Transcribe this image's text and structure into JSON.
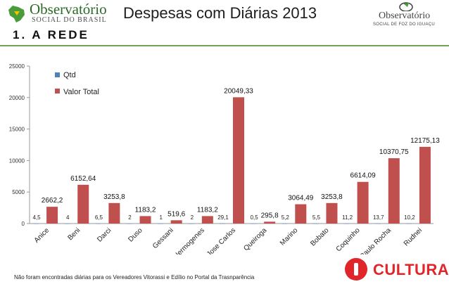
{
  "header": {
    "left_logo": {
      "brand": "Observatório",
      "sub": "SOCIAL DO BRASIL"
    },
    "title": "Despesas com Diárias 2013",
    "right_logo": {
      "brand": "Observatório",
      "sub": "SOCIAL DE FOZ DO IGUAÇU"
    },
    "section": "1. A REDE"
  },
  "colors": {
    "qtd": "#4f81bd",
    "valor_total": "#c0504d",
    "accent_line": "#6fa25a",
    "cultura": "#e0262a"
  },
  "chart_data": {
    "type": "bar",
    "categories": [
      "Anice",
      "Beni",
      "Darci",
      "Duso",
      "Gessani",
      "Hermogenes",
      "Jose Carlos",
      "Queiroga",
      "Marino",
      "Bobato",
      "Coquinho",
      "Paulo Rocha",
      "Rudnei"
    ],
    "series": [
      {
        "name": "Qtd",
        "values": [
          4.5,
          4,
          6.5,
          2,
          1,
          2,
          29.1,
          0.5,
          5.2,
          5.5,
          11.2,
          13.7,
          10.2
        ],
        "labels": [
          "4,5",
          "4",
          "6,5",
          "2",
          "1",
          "2",
          "29,1",
          "0,5",
          "5,2",
          "5,5",
          "11,2",
          "13,7",
          "10,2"
        ]
      },
      {
        "name": "Valor Total",
        "values": [
          2662.2,
          6152.64,
          3253.8,
          1183.2,
          519.6,
          1183.2,
          20049.33,
          295.8,
          3064.49,
          3253.8,
          6614.09,
          10370.75,
          12175.13
        ],
        "labels": [
          "2662,2",
          "6152,64",
          "3253,8",
          "1183,2",
          "519,6",
          "1183,2",
          "20049,33",
          "295,8",
          "3064,49",
          "3253,8",
          "6614,09",
          "10370,75",
          "12175,13"
        ]
      }
    ],
    "yticks": [
      "0",
      "5000",
      "10000",
      "15000",
      "20000",
      "25000"
    ],
    "ylim": [
      0,
      25000
    ],
    "xlabel": "",
    "ylabel": "",
    "legend": "top-left",
    "grid": false
  },
  "footer": {
    "note": "Não foram encontradas diárias para os Vereadores Vitorassi e Edílio no Portal da Trasnparência",
    "cultura": "CULTURA"
  }
}
